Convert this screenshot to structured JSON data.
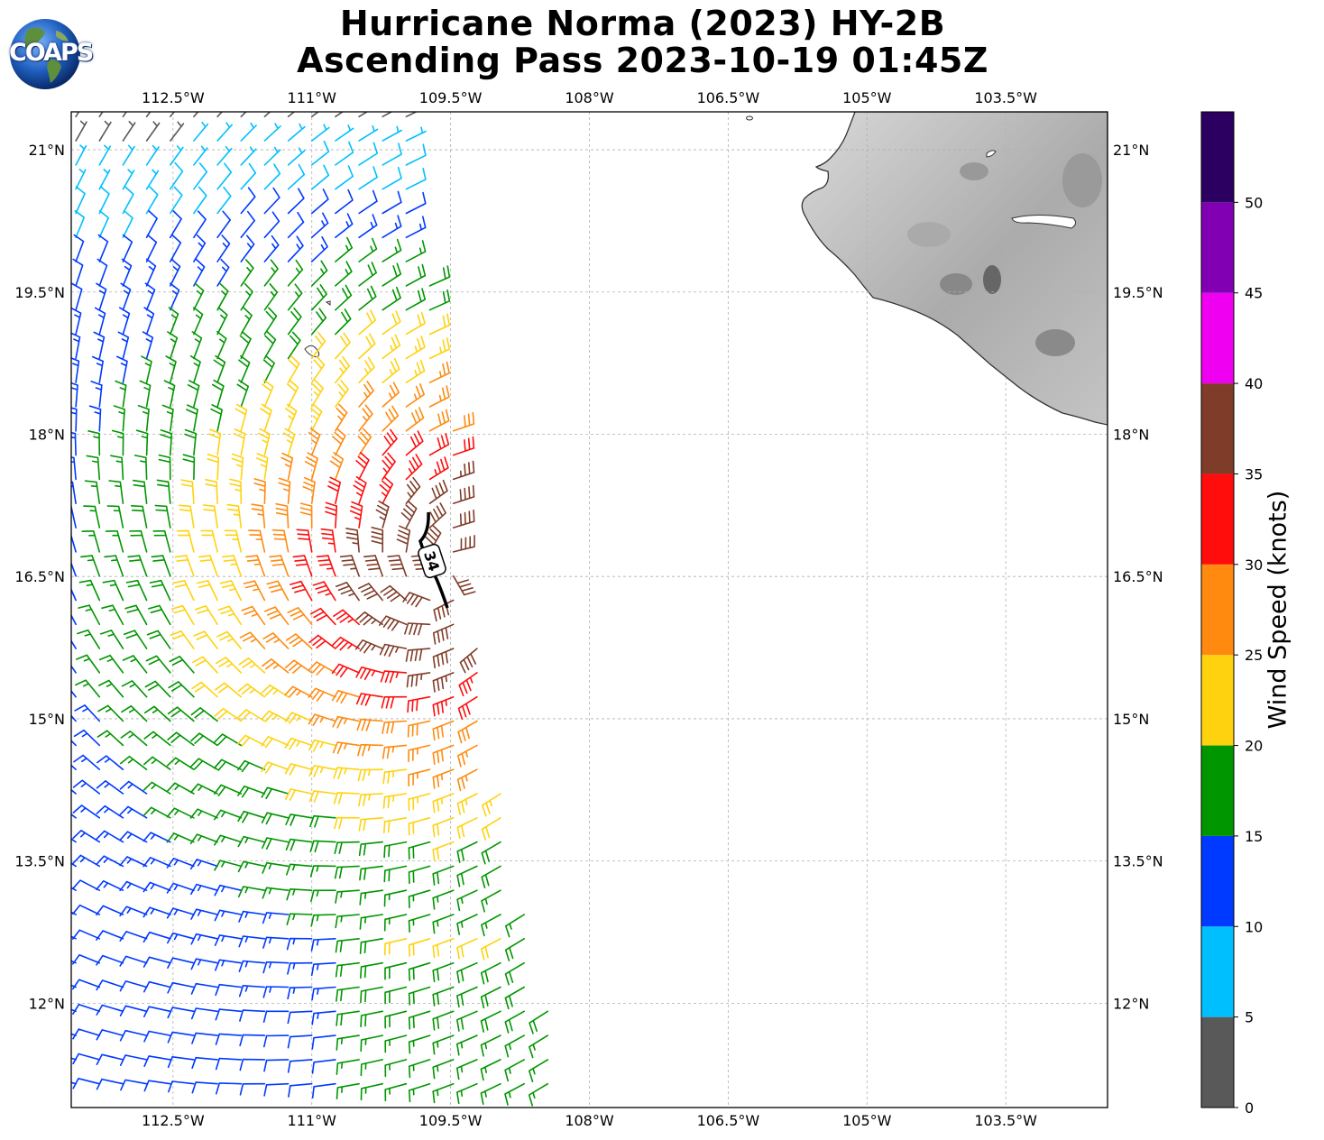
{
  "title": {
    "line1": "Hurricane Norma (2023) HY-2B",
    "line2": "Ascending Pass 2023-10-19 01:45Z"
  },
  "logo": {
    "text": "COAPS",
    "icon": "globe-icon"
  },
  "axes": {
    "lon_ticks": [
      "112.5°W",
      "111°W",
      "109.5°W",
      "108°W",
      "106.5°W",
      "105°W",
      "103.5°W"
    ],
    "lat_ticks": [
      "21°N",
      "19.5°N",
      "18°N",
      "16.5°N",
      "15°N",
      "13.5°N",
      "12°N"
    ]
  },
  "contour": {
    "label": "34"
  },
  "colorbar": {
    "label": "Wind Speed (knots)",
    "ticks": [
      "0",
      "5",
      "10",
      "15",
      "20",
      "25",
      "30",
      "35",
      "40",
      "45",
      "50"
    ],
    "bins": [
      {
        "min": 0,
        "max": 5,
        "color": "#595959"
      },
      {
        "min": 5,
        "max": 10,
        "color": "#00bfff"
      },
      {
        "min": 10,
        "max": 15,
        "color": "#0039ff"
      },
      {
        "min": 15,
        "max": 20,
        "color": "#009600"
      },
      {
        "min": 20,
        "max": 25,
        "color": "#ffd20f"
      },
      {
        "min": 25,
        "max": 30,
        "color": "#ff8a0f"
      },
      {
        "min": 30,
        "max": 35,
        "color": "#ff0c0c"
      },
      {
        "min": 35,
        "max": 40,
        "color": "#7f3c28"
      },
      {
        "min": 40,
        "max": 45,
        "color": "#f000f0"
      },
      {
        "min": 45,
        "max": 50,
        "color": "#8200b4"
      },
      {
        "min": 50,
        "max": 55,
        "color": "#2b0060"
      }
    ]
  },
  "chart_data": {
    "type": "wind-barb-map",
    "lon_range": [
      -113.6,
      -102.4
    ],
    "lat_range": [
      10.9,
      21.4
    ],
    "storm_center": {
      "lon": -109.5,
      "lat": 16.5
    },
    "swath_east_edge_lon": [
      [
        20.8,
        -109.9
      ],
      [
        18.0,
        -109.45
      ],
      [
        16.0,
        -109.25
      ],
      [
        13.0,
        -108.7
      ],
      [
        11.0,
        -108.2
      ]
    ],
    "speed_units": "knots"
  }
}
